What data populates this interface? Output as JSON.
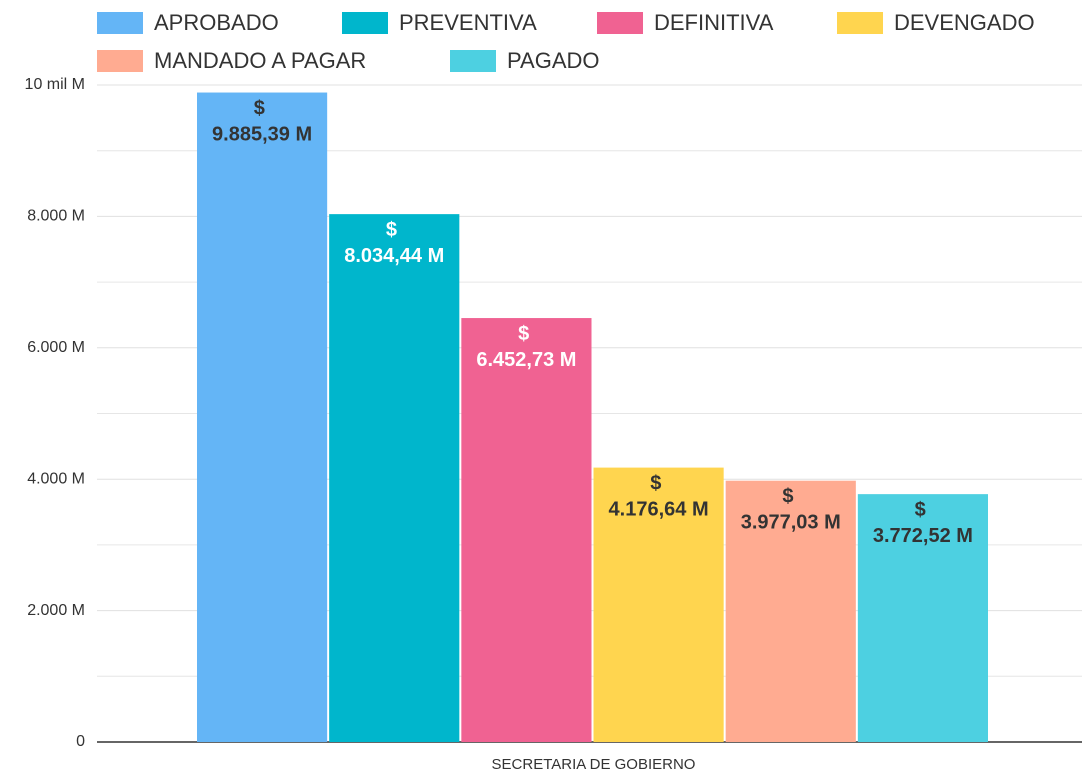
{
  "chart_data": {
    "type": "bar",
    "categories": [
      "SECRETARIA DE GOBIERNO"
    ],
    "series": [
      {
        "name": "APROBADO",
        "color": "#64b5f6",
        "label_color": "#333333",
        "values": [
          9885.39
        ],
        "value_labels": [
          "$ 9.885,39 M"
        ]
      },
      {
        "name": "PREVENTIVA",
        "color": "#00b6cc",
        "label_color": "#ffffff",
        "values": [
          8034.44
        ],
        "value_labels": [
          "$ 8.034,44 M"
        ]
      },
      {
        "name": "DEFINITIVA",
        "color": "#f06292",
        "label_color": "#ffffff",
        "values": [
          6452.73
        ],
        "value_labels": [
          "$ 6.452,73 M"
        ]
      },
      {
        "name": "DEVENGADO",
        "color": "#ffd54f",
        "label_color": "#333333",
        "values": [
          4176.64
        ],
        "value_labels": [
          "$ 4.176,64 M"
        ]
      },
      {
        "name": "MANDADO A PAGAR",
        "color": "#ffab91",
        "label_color": "#333333",
        "values": [
          3977.03
        ],
        "value_labels": [
          "$ 3.977,03 M"
        ]
      },
      {
        "name": "PAGADO",
        "color": "#4dd0e1",
        "label_color": "#333333",
        "values": [
          3772.52
        ],
        "value_labels": [
          "$ 3.772,52 M"
        ]
      }
    ],
    "ylim": [
      0,
      10000
    ],
    "yticks": [
      0,
      {
        "value": 2000,
        "label": "2.000 M"
      },
      {
        "value": 4000,
        "label": "4.000 M"
      },
      {
        "value": 6000,
        "label": "6.000 M"
      },
      {
        "value": 8000,
        "label": "8.000 M"
      },
      {
        "value": 10000,
        "label": "10 mil M"
      }
    ],
    "minor_yticks": [
      1000,
      3000,
      5000,
      7000,
      9000
    ],
    "grid": true,
    "legend": "top"
  }
}
